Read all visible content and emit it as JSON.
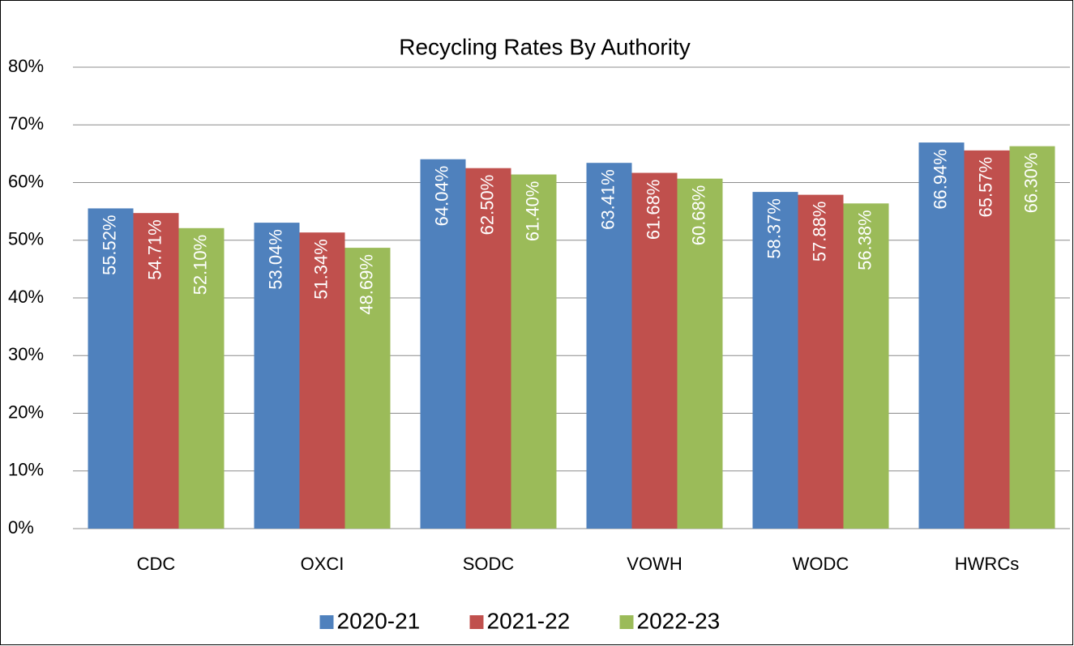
{
  "chart_data": {
    "type": "bar",
    "title": "Recycling Rates By Authority",
    "categories": [
      "CDC",
      "OXCI",
      "SODC",
      "VOWH",
      "WODC",
      "HWRCs"
    ],
    "series": [
      {
        "name": "2020-21",
        "color": "#4f81bd",
        "values": [
          55.52,
          53.04,
          64.04,
          63.41,
          58.37,
          66.94
        ],
        "value_labels": [
          "55.52%",
          "53.04%",
          "64.04%",
          "63.41%",
          "58.37%",
          "66.94%"
        ]
      },
      {
        "name": "2021-22",
        "color": "#c0504d",
        "values": [
          54.71,
          51.34,
          62.5,
          61.68,
          57.88,
          65.57
        ],
        "value_labels": [
          "54.71%",
          "51.34%",
          "62.50%",
          "61.68%",
          "57.88%",
          "65.57%"
        ]
      },
      {
        "name": "2022-23",
        "color": "#9bbb59",
        "values": [
          52.1,
          48.69,
          61.4,
          60.68,
          56.38,
          66.3
        ],
        "value_labels": [
          "52.10%",
          "48.69%",
          "61.40%",
          "60.68%",
          "56.38%",
          "66.30%"
        ]
      }
    ],
    "ylim": [
      0,
      80
    ],
    "yticks": [
      {
        "value": 0,
        "label": "0%"
      },
      {
        "value": 10,
        "label": "10%"
      },
      {
        "value": 20,
        "label": "20%"
      },
      {
        "value": 30,
        "label": "30%"
      },
      {
        "value": 40,
        "label": "40%"
      },
      {
        "value": 50,
        "label": "50%"
      },
      {
        "value": 60,
        "label": "60%"
      },
      {
        "value": 70,
        "label": "70%"
      },
      {
        "value": 80,
        "label": "80%"
      }
    ],
    "grid": true,
    "legend": "bottom"
  }
}
